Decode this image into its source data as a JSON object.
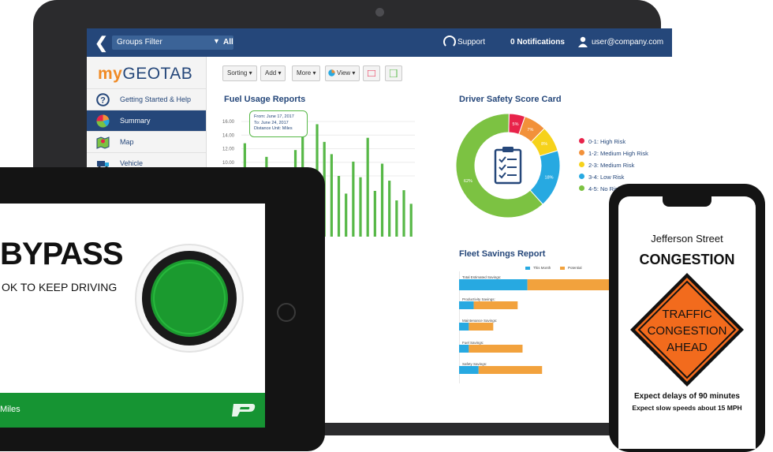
{
  "topbar": {
    "back_glyph": "❮",
    "groups_filter": "Groups Filter",
    "all_caret": "▼",
    "all_label": "All",
    "support_label": "Support",
    "notifications_label": "0 Notifications",
    "user_label": "user@company.com"
  },
  "sidebar": {
    "logo_my": "my",
    "logo_geotab": "GEOTAB",
    "items": [
      {
        "label": "Getting Started & Help",
        "icon": "help-circle-icon"
      },
      {
        "label": "Summary",
        "icon": "pie-chart-icon"
      },
      {
        "label": "Map",
        "icon": "map-icon"
      },
      {
        "label": "Vehicle",
        "icon": "truck-icon"
      }
    ]
  },
  "toolbar": {
    "sorting": "Sorting ▾",
    "add": "Add ▾",
    "more": "More ▾",
    "view": "View ▾"
  },
  "fuel_report": {
    "title": "Fuel Usage Reports",
    "tooltip_line1": "From: June 17, 2017",
    "tooltip_line2": "To: June 24, 2017",
    "tooltip_line3": "Distance Unit: Miles"
  },
  "driver_safety": {
    "title": "Driver Safety Score Card",
    "legend": [
      "0-1: High Risk",
      "1-2: Medium High Risk",
      "2-3: Medium Risk",
      "3-4: Low Risk",
      "4-5: No Risk"
    ],
    "colors": [
      "#e8234a",
      "#f2913a",
      "#f6d21b",
      "#27a9e1",
      "#7cc242"
    ]
  },
  "fleet_savings": {
    "title": "Fleet Savings Report",
    "legend": [
      "This Month",
      "Potential"
    ],
    "rows": [
      "Total Estimated Savings:",
      "Productivity Savings:",
      "Maintenance Savings:",
      "Fuel Savings:",
      "Safety Savings:"
    ]
  },
  "chart_data": [
    {
      "type": "bar",
      "title": "Fuel Usage Reports",
      "ylim": [
        0,
        16
      ],
      "yticks": [
        "16.00",
        "14.00",
        "12.00",
        "10.00",
        "8.00"
      ],
      "values": [
        12.8,
        9.2,
        5.5,
        10.8,
        6.2,
        4.4,
        8.3,
        11.8,
        15.8,
        7.6,
        15.6,
        13.0,
        11.2,
        8.0,
        5.4,
        10.1,
        7.8,
        13.6,
        5.8,
        9.8,
        7.3,
        4.4,
        5.9,
        3.9
      ]
    },
    {
      "type": "pie",
      "title": "Driver Safety Score Card",
      "categories": [
        "0-1: High Risk",
        "1-2: Medium High Risk",
        "2-3: Medium Risk",
        "3-4: Low Risk",
        "4-5: No Risk"
      ],
      "values": [
        5,
        7,
        8,
        18,
        62
      ],
      "labels": [
        "5%",
        "7%",
        "8%",
        "18%",
        "62%"
      ]
    },
    {
      "type": "bar",
      "title": "Fleet Savings Report",
      "categories": [
        "Total Estimated Savings:",
        "Productivity Savings:",
        "Maintenance Savings:",
        "Fuel Savings:",
        "Safety Savings:"
      ],
      "series": [
        {
          "name": "This Month",
          "values": [
            14,
            3,
            2,
            2,
            4
          ]
        },
        {
          "name": "Potential",
          "values": [
            28,
            9,
            5,
            11,
            13
          ]
        }
      ]
    }
  ],
  "tablet": {
    "status": "BYPASS",
    "message": "OK TO KEEP DRIVING",
    "footer": "Miles"
  },
  "phone": {
    "street": "Jefferson Street",
    "headline": "CONGESTION",
    "sign_line1": "TRAFFIC",
    "sign_line2": "CONGESTION",
    "sign_line3": "AHEAD",
    "delay_line1": "Expect delays of 90 minutes",
    "delay_line2": "Expect slow speeds about 15 MPH"
  }
}
